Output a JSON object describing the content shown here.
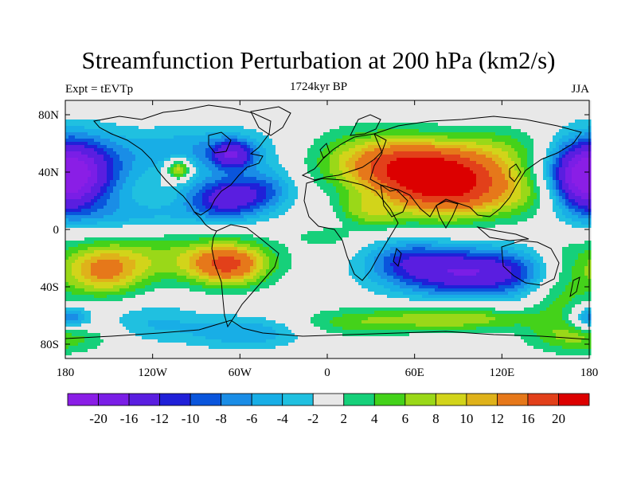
{
  "title": "Streamfunction Perturbation at 200 hPa (km2/s)",
  "experiment": "Expt = tEVTp",
  "period": "1724kyr BP",
  "season": "JJA",
  "colors": {
    "background": "#ffffff",
    "neutral": "#e8e8e8",
    "coast": "#000000",
    "bins": [
      "#8a1ee6",
      "#7a1ee6",
      "#5a1ee0",
      "#2020d8",
      "#0a55dc",
      "#1a8de6",
      "#18aee6",
      "#20c0e0",
      "#e8e8e8",
      "#16d07a",
      "#44d21a",
      "#9ad818",
      "#d2d41a",
      "#dfb21a",
      "#e6781a",
      "#e2401a",
      "#dc0000"
    ]
  },
  "map": {
    "lat_labels": [
      "80N",
      "40N",
      "0",
      "40S",
      "80S"
    ],
    "lon_labels": [
      "180",
      "120W",
      "60W",
      "0",
      "60E",
      "120E",
      "180"
    ]
  },
  "colorbar": {
    "labels": [
      "-20",
      "-16",
      "-12",
      "-10",
      "-8",
      "-6",
      "-4",
      "-2",
      "2",
      "4",
      "6",
      "8",
      "10",
      "12",
      "16",
      "20"
    ]
  },
  "chart_data": {
    "type": "heatmap",
    "title": "Streamfunction Perturbation at 200 hPa (km2/s)",
    "subtitle_left": "Expt = tEVTp",
    "subtitle_center": "1724kyr BP",
    "subtitle_right": "JJA",
    "x_range": [
      -180,
      180
    ],
    "y_range": [
      -90,
      90
    ],
    "levels": [
      -20,
      -16,
      -12,
      -10,
      -8,
      -6,
      -4,
      -2,
      2,
      4,
      6,
      8,
      10,
      12,
      16,
      20
    ],
    "blobs": [
      {
        "lon": 82,
        "lat": 30,
        "value": 21,
        "slon": 32,
        "slat": 15
      },
      {
        "lon": 55,
        "lat": 45,
        "value": 10,
        "slon": 30,
        "slat": 12
      },
      {
        "lon": 30,
        "lat": 50,
        "value": 6,
        "slon": 35,
        "slat": 15
      },
      {
        "lon": 120,
        "lat": 55,
        "value": 5,
        "slon": 28,
        "slat": 12
      },
      {
        "lon": 140,
        "lat": 25,
        "value": 4,
        "slon": 20,
        "slat": 12
      },
      {
        "lon": 20,
        "lat": 15,
        "value": 4,
        "slon": 10,
        "slat": 7
      },
      {
        "lon": 35,
        "lat": 8,
        "value": 4,
        "slon": 12,
        "slat": 6
      },
      {
        "lon": -102,
        "lat": 42,
        "value": 12,
        "slon": 6,
        "slat": 5
      },
      {
        "lon": -85,
        "lat": 55,
        "value": -6,
        "slon": 40,
        "slat": 12
      },
      {
        "lon": -65,
        "lat": 52,
        "value": -12,
        "slon": 10,
        "slat": 7
      },
      {
        "lon": -68,
        "lat": 22,
        "value": -14,
        "slon": 20,
        "slat": 10
      },
      {
        "lon": -40,
        "lat": 30,
        "value": -5,
        "slon": 15,
        "slat": 10
      },
      {
        "lon": -175,
        "lat": 40,
        "value": -16,
        "slon": 25,
        "slat": 18
      },
      {
        "lon": 178,
        "lat": 35,
        "value": -12,
        "slon": 15,
        "slat": 15
      },
      {
        "lon": -130,
        "lat": 10,
        "value": -4,
        "slon": 40,
        "slat": 8
      },
      {
        "lon": 100,
        "lat": -30,
        "value": -16,
        "slon": 40,
        "slat": 12
      },
      {
        "lon": 55,
        "lat": -20,
        "value": -6,
        "slon": 20,
        "slat": 10
      },
      {
        "lon": -155,
        "lat": -30,
        "value": 11,
        "slon": 20,
        "slat": 12
      },
      {
        "lon": -68,
        "lat": -25,
        "value": 14,
        "slon": 18,
        "slat": 10
      },
      {
        "lon": -110,
        "lat": -20,
        "value": 6,
        "slon": 50,
        "slat": 12
      },
      {
        "lon": 160,
        "lat": -40,
        "value": 6,
        "slon": 15,
        "slat": 20
      },
      {
        "lon": 0,
        "lat": -5,
        "value": 3,
        "slon": 15,
        "slat": 5
      },
      {
        "lon": -55,
        "lat": -72,
        "value": -6,
        "slon": 28,
        "slat": 8
      },
      {
        "lon": -120,
        "lat": -65,
        "value": -4,
        "slon": 25,
        "slat": 10
      },
      {
        "lon": 90,
        "lat": -62,
        "value": 8,
        "slon": 35,
        "slat": 6
      },
      {
        "lon": 20,
        "lat": -65,
        "value": 5,
        "slon": 30,
        "slat": 7
      },
      {
        "lon": -178,
        "lat": -62,
        "value": -10,
        "slon": 10,
        "slat": 6
      },
      {
        "lon": 175,
        "lat": -75,
        "value": 6,
        "slon": 25,
        "slat": 8
      }
    ]
  }
}
